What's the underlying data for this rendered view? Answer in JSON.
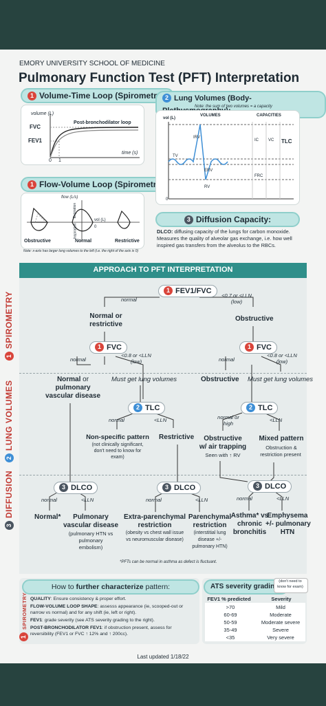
{
  "header": {
    "institution": "EMORY UNIVERSITY SCHOOL OF MEDICINE",
    "title": "Pulmonary Function Test (PFT) Interpretation"
  },
  "volume_time": {
    "num": "1",
    "title": "Volume-Time Loop (Spirometry):",
    "y_axis": "volume (L)",
    "curve_label": "Post-bronchodilator loop",
    "fvc": "FVC",
    "fev1": "FEV1",
    "tick0": "0",
    "tick1": "1",
    "x_axis": "time (s)"
  },
  "flow_volume": {
    "num": "1",
    "title": "Flow-Volume Loop (Spirometry):",
    "y_axis": "flow (L/s)",
    "expiration": "Expiration",
    "inspiration": "Inspiration",
    "vol": "vol (L)",
    "zero": "0",
    "labels": [
      "Obstructive",
      "Normal",
      "Restrictive"
    ],
    "note": "Note: x-axis has larger lung volumes to the left (i.e. the right of the axis is 0)"
  },
  "lung_volumes": {
    "num": "2",
    "title": "Lung Volumes (Body-Plethysmography):",
    "note": "Note: the sum of two volumes = a capacity",
    "vol_axis": "vol (L)",
    "volumes_head": "VOLUMES",
    "capacities_head": "CAPACITIES",
    "irv": "IRV",
    "tv": "TV",
    "erv": "ERV",
    "rv": "RV",
    "ic": "IC",
    "vc": "VC",
    "tlc": "TLC",
    "frc": "FRC",
    "zero": "0"
  },
  "diffusion": {
    "num": "3",
    "title": "Diffusion Capacity:",
    "label": "DLCO:",
    "text1": " diffusing capacity of the lungs for carbon monoxide.",
    "text2": "Measures the quality of alveolar gas exchange, i.e. how well",
    "text3": "inspired gas transfers from the alveolus to the RBCs."
  },
  "approach": {
    "title": "APPROACH TO PFT INTERPRETATION",
    "sections": {
      "spirometry": "SPIROMETRY",
      "lung_volumes": "LUNG VOLUMES",
      "diffusion": "DIFFUSION"
    },
    "sec_nums": {
      "s1": "1",
      "s2": "2",
      "s3": "3"
    },
    "fev1fvc": "FEV1/FVC",
    "normal": "normal",
    "lt07": "<0.7 or <LLN",
    "low": "(low)",
    "normal_or": "Normal or",
    "restrictive": "restrictive",
    "obstructive": "Obstructive",
    "fvc": "FVC",
    "lt08": "<0.8 or <LLN",
    "normal_or2": "Normal",
    "or_word": " or",
    "pulm_vasc": "pulmonary",
    "vasc_disease": "vascular disease",
    "must_get": "Must get lung volumes",
    "tlc": "TLC",
    "ltlln": "<LLN",
    "normal_or_high": "normal or",
    "high": "high",
    "nonspec": "Non-specific pattern",
    "nonspec_note1": "(not clinically significant,",
    "nonspec_note2": "don't need to know for",
    "nonspec_note3": "exam)",
    "restrictive_cap": "Restrictive",
    "obs_air1": "Obstructive",
    "obs_air2": "w/ air trapping",
    "seen_with": "Seen with ↑ RV",
    "mixed": "Mixed pattern",
    "mixed_note1": "Obstruction &",
    "mixed_note2": "restriction present",
    "dlco": "DLCO",
    "normal_star": "Normal*",
    "pvd1": "Pulmonary",
    "pvd2": "vascular disease",
    "pvd3": "(pulmonary HTN vs",
    "pvd4": "pulmonary",
    "pvd5": "embolism)",
    "extra1": "Extra-parenchymal",
    "extra2": "restriction",
    "extra3": "(obesity vs chest wall issue",
    "extra4": "vs neuromuscular disease)",
    "paren1": "Parenchymal",
    "paren2": "restriction",
    "paren3": "(interstitial lung",
    "paren4": "disease +/-",
    "paren5": "pulmonary HTN)",
    "asthma1": "Asthma* vs",
    "asthma2": "chronic",
    "asthma3": "bronchitis",
    "emph1": "Emphysema",
    "emph2": "+/- pulmonary",
    "emph3": "HTN",
    "footnote": "*PFTs can be normal in asthma as defect is fluctuant."
  },
  "further": {
    "title_pre": "How to ",
    "title_bold": "further characterize",
    "title_post": " pattern:",
    "side": "SPIROMETRY",
    "side_num": "1",
    "items": [
      {
        "label": "QUALITY",
        "text": ": Ensure consistency & proper effort."
      },
      {
        "label": "FLOW-VOLUME LOOP SHAPE",
        "text": ": assesss appearance (ie, scooped-out or",
        "text2": "narrow vs normal) and for any shift (ie, left or right)."
      },
      {
        "label": "FEV1",
        "text": ": grade severity (see ATS severity grading to the right)."
      },
      {
        "label": "POST-BRONCHODILATOR FEV1",
        "text": ": if obstruction present, assess for",
        "text2": "reversibility (FEV1 or FVC ↑ 12% and ↑ 200cc)."
      }
    ]
  },
  "ats": {
    "title": "ATS severity grading:",
    "note1": "(don't need to",
    "note2": "know for exam)",
    "col1": "FEV1 % predicted",
    "col2": "Severity",
    "rows": [
      {
        "pct": ">70",
        "sev": "Mild"
      },
      {
        "pct": "60-69",
        "sev": "Moderate"
      },
      {
        "pct": "50-59",
        "sev": "Moderate severe"
      },
      {
        "pct": "35-49",
        "sev": "Severe"
      },
      {
        "pct": "<35",
        "sev": "Very severe"
      }
    ]
  },
  "footer": {
    "updated": "Last updated 1/18/22"
  },
  "colors": {
    "accent": "#bfe5e3",
    "dark": "#27433f",
    "red": "#d9453b",
    "blue": "#3e8fd6"
  }
}
